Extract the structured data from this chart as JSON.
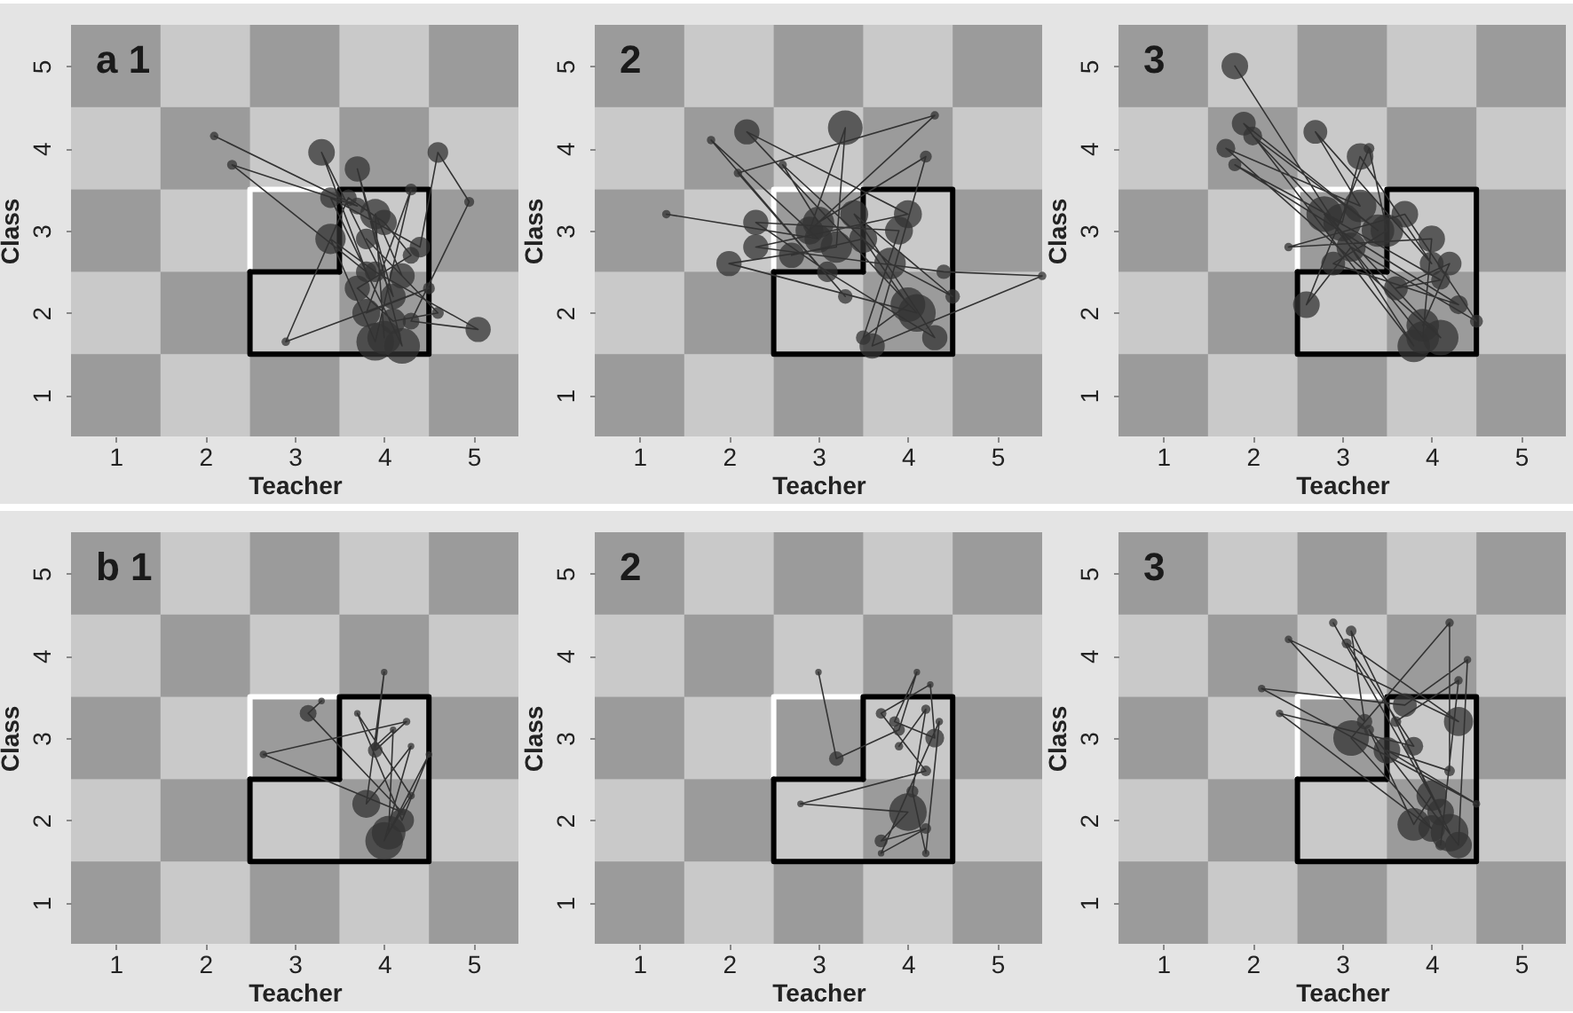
{
  "chart_data": [
    {
      "type": "bubble",
      "title": "a 1",
      "xlabel": "Teacher",
      "ylabel": "Class",
      "xlim": [
        0.5,
        5.5
      ],
      "ylim": [
        0.5,
        5.5
      ],
      "xticks": [
        1,
        2,
        3,
        4,
        5
      ],
      "yticks": [
        1,
        2,
        3,
        4,
        5
      ],
      "series": [
        {
          "type": "line",
          "color": "#ffffff",
          "x": [
            2.5,
            2.5,
            3.5
          ],
          "values": [
            2.5,
            3.5,
            3.5
          ]
        },
        {
          "type": "line",
          "color": "#000000",
          "x": [
            2.5,
            2.5,
            4.5,
            4.5,
            3.5,
            3.5
          ],
          "values": [
            2.5,
            1.5,
            1.5,
            3.5,
            3.5,
            2.5
          ]
        },
        {
          "type": "line",
          "color": "#000000",
          "x": [
            3.5,
            2.5
          ],
          "values": [
            2.5,
            2.5
          ]
        },
        {
          "type": "line",
          "color": "#333333",
          "x": [
            2.1,
            3.7,
            2.3,
            3.8,
            3.3,
            4.1,
            3.7,
            4.2,
            3.4,
            4.4,
            4.6,
            4.95,
            4.3,
            5.05,
            3.9,
            3.4,
            3.9,
            4.3,
            3.8,
            4.5,
            2.9,
            3.6,
            4.0,
            4.3,
            3.7,
            4.1,
            4.6,
            3.8,
            4.2,
            3.9,
            4.0
          ],
          "values": [
            4.15,
            3.3,
            3.8,
            2.5,
            3.95,
            2.2,
            3.75,
            1.6,
            3.4,
            2.8,
            3.95,
            3.35,
            1.9,
            1.8,
            2.5,
            2.9,
            1.65,
            3.5,
            2.0,
            2.3,
            1.65,
            3.4,
            3.1,
            2.7,
            2.3,
            1.9,
            2.0,
            2.9,
            2.45,
            3.2,
            1.7
          ]
        },
        {
          "color": "#333333",
          "x": [
            2.1,
            3.7,
            2.3,
            3.8,
            3.3,
            4.1,
            3.7,
            4.2,
            3.4,
            4.4,
            4.6,
            4.95,
            4.3,
            5.05,
            3.9,
            3.4,
            3.9,
            4.3,
            3.8,
            4.5,
            2.9,
            3.6,
            4.0,
            4.3,
            3.7,
            4.1,
            4.6,
            3.8,
            4.2,
            3.9,
            4.0
          ],
          "values": [
            4.15,
            3.3,
            3.8,
            2.5,
            3.95,
            2.2,
            3.75,
            1.6,
            3.4,
            2.8,
            3.95,
            3.35,
            1.9,
            1.8,
            2.5,
            2.9,
            1.65,
            3.5,
            2.0,
            2.3,
            1.65,
            3.4,
            3.1,
            2.7,
            2.3,
            1.9,
            2.0,
            2.9,
            2.45,
            3.2,
            1.7
          ],
          "sizes": [
            0.05,
            0.2,
            0.07,
            0.3,
            0.5,
            0.45,
            0.45,
            0.9,
            0.3,
            0.3,
            0.3,
            0.07,
            0.2,
            0.45,
            0.3,
            0.65,
            1,
            0.1,
            0.55,
            0.1,
            0.05,
            0.2,
            0.45,
            0.2,
            0.45,
            0.45,
            0.1,
            0.3,
            0.45,
            0.65,
            0.8
          ]
        }
      ]
    },
    {
      "type": "bubble",
      "title": "2",
      "xlabel": "Teacher",
      "ylabel": "Class",
      "xlim": [
        0.5,
        5.5
      ],
      "ylim": [
        0.5,
        5.5
      ],
      "xticks": [
        1,
        2,
        3,
        4,
        5
      ],
      "yticks": [
        1,
        2,
        3,
        4,
        5
      ],
      "series": [
        {
          "type": "line",
          "color": "#ffffff",
          "x": [
            2.5,
            2.5,
            3.5
          ],
          "values": [
            2.5,
            3.5,
            3.5
          ]
        },
        {
          "type": "line",
          "color": "#000000",
          "x": [
            2.5,
            2.5,
            4.5,
            4.5,
            3.5,
            3.5
          ],
          "values": [
            2.5,
            1.5,
            1.5,
            3.5,
            3.5,
            2.5
          ]
        },
        {
          "type": "line",
          "color": "#000000",
          "x": [
            3.5,
            2.5
          ],
          "values": [
            2.5,
            2.5
          ]
        },
        {
          "type": "line",
          "color": "#333333",
          "x": [
            1.3,
            3.0,
            1.8,
            3.3,
            2.1,
            4.3,
            2.9,
            3.3,
            3.2,
            2.0,
            4.1,
            2.2,
            4.0,
            2.3,
            4.4,
            5.5,
            3.6,
            4.2,
            3.0,
            2.6,
            3.8,
            4.5,
            3.4,
            4.3,
            3.1,
            2.3,
            3.9,
            3.5,
            4.0,
            3.5,
            2.7
          ],
          "values": [
            3.2,
            2.9,
            4.1,
            2.2,
            3.7,
            4.4,
            3.0,
            4.25,
            2.8,
            2.6,
            2.0,
            4.2,
            3.2,
            2.8,
            2.5,
            2.45,
            1.6,
            3.9,
            3.1,
            3.8,
            2.6,
            2.2,
            3.2,
            1.7,
            2.5,
            3.1,
            3.0,
            1.7,
            2.1,
            2.9,
            2.7
          ]
        },
        {
          "color": "#333333",
          "x": [
            1.3,
            3.0,
            1.8,
            3.3,
            2.1,
            4.3,
            2.9,
            3.3,
            3.2,
            2.0,
            4.1,
            2.2,
            4.0,
            2.3,
            4.4,
            5.5,
            3.6,
            4.2,
            3.0,
            2.6,
            3.8,
            4.5,
            3.4,
            4.3,
            3.1,
            2.3,
            3.9,
            3.5,
            4.0,
            3.5,
            2.7
          ],
          "values": [
            3.2,
            2.9,
            4.1,
            2.2,
            3.7,
            4.4,
            3.0,
            4.25,
            2.8,
            2.6,
            2.0,
            4.2,
            3.2,
            2.8,
            2.5,
            2.45,
            1.6,
            3.9,
            3.1,
            3.8,
            2.6,
            2.2,
            3.2,
            1.7,
            2.5,
            3.1,
            3.0,
            1.7,
            2.1,
            2.9,
            2.7
          ],
          "sizes": [
            0.05,
            0.55,
            0.05,
            0.15,
            0.05,
            0.05,
            0.55,
            0.85,
            0.7,
            0.45,
            1,
            0.45,
            0.55,
            0.45,
            0.15,
            0.05,
            0.45,
            0.1,
            0.7,
            0.05,
            0.7,
            0.15,
            0.55,
            0.45,
            0.3,
            0.45,
            0.55,
            0.15,
            0.85,
            0.55,
            0.45
          ]
        }
      ]
    },
    {
      "type": "bubble",
      "title": "3",
      "xlabel": "Teacher",
      "ylabel": "Class",
      "xlim": [
        0.5,
        5.5
      ],
      "ylim": [
        0.5,
        5.5
      ],
      "xticks": [
        1,
        2,
        3,
        4,
        5
      ],
      "yticks": [
        1,
        2,
        3,
        4,
        5
      ],
      "series": [
        {
          "type": "line",
          "color": "#ffffff",
          "x": [
            2.5,
            2.5,
            3.5
          ],
          "values": [
            2.5,
            3.5,
            3.5
          ]
        },
        {
          "type": "line",
          "color": "#000000",
          "x": [
            2.5,
            2.5,
            4.5,
            4.5,
            3.5,
            3.5
          ],
          "values": [
            2.5,
            1.5,
            1.5,
            3.5,
            3.5,
            2.5
          ]
        },
        {
          "type": "line",
          "color": "#000000",
          "x": [
            3.5,
            2.5
          ],
          "values": [
            2.5,
            2.5
          ]
        },
        {
          "type": "line",
          "color": "#333333",
          "x": [
            1.8,
            3.8,
            1.9,
            3.4,
            2.0,
            4.1,
            1.7,
            3.2,
            2.7,
            4.0,
            3.2,
            3.0,
            1.8,
            4.3,
            2.9,
            3.5,
            3.3,
            2.6,
            3.1,
            4.5,
            3.7,
            2.4,
            4.0,
            3.9,
            2.8,
            4.1,
            3.6,
            4.2,
            3.9
          ],
          "values": [
            5.0,
            1.6,
            4.3,
            3.0,
            4.15,
            1.7,
            4.0,
            3.3,
            4.2,
            2.6,
            3.9,
            3.1,
            3.8,
            2.1,
            2.6,
            3.0,
            4.0,
            2.1,
            2.8,
            1.9,
            3.2,
            2.8,
            2.9,
            1.7,
            3.2,
            2.4,
            2.3,
            2.6,
            1.85
          ]
        },
        {
          "color": "#333333",
          "x": [
            1.8,
            3.8,
            1.9,
            3.4,
            2.0,
            4.1,
            1.7,
            3.2,
            2.7,
            4.0,
            3.2,
            3.0,
            1.8,
            4.3,
            2.9,
            3.5,
            3.3,
            2.6,
            3.1,
            4.5,
            3.7,
            2.4,
            4.0,
            3.9,
            2.8,
            4.1,
            3.6,
            4.2,
            3.9
          ],
          "values": [
            5.0,
            1.6,
            4.3,
            3.0,
            4.15,
            1.7,
            4.0,
            3.3,
            4.2,
            2.6,
            3.9,
            3.1,
            3.8,
            2.1,
            2.6,
            3.0,
            4.0,
            2.1,
            2.8,
            1.9,
            3.2,
            2.8,
            2.9,
            1.7,
            3.2,
            2.4,
            2.3,
            2.6,
            1.85
          ],
          "sizes": [
            0.5,
            0.75,
            0.4,
            0.75,
            0.25,
            0.9,
            0.25,
            0.75,
            0.4,
            0.4,
            0.5,
            1,
            0.12,
            0.25,
            0.4,
            0.75,
            0.08,
            0.5,
            0.6,
            0.12,
            0.5,
            0.05,
            0.5,
            0.75,
            0.9,
            0.25,
            0.4,
            0.4,
            0.75
          ]
        }
      ]
    },
    {
      "type": "bubble",
      "title": "b 1",
      "xlabel": "Teacher",
      "ylabel": "Class",
      "xlim": [
        0.5,
        5.5
      ],
      "ylim": [
        0.5,
        5.5
      ],
      "xticks": [
        1,
        2,
        3,
        4,
        5
      ],
      "yticks": [
        1,
        2,
        3,
        4,
        5
      ],
      "series": [
        {
          "type": "line",
          "color": "#ffffff",
          "x": [
            2.5,
            2.5,
            3.5
          ],
          "values": [
            2.5,
            3.5,
            3.5
          ]
        },
        {
          "type": "line",
          "color": "#000000",
          "x": [
            2.5,
            2.5,
            4.5,
            4.5,
            3.5,
            3.5
          ],
          "values": [
            2.5,
            1.5,
            1.5,
            3.5,
            3.5,
            2.5
          ]
        },
        {
          "type": "line",
          "color": "#000000",
          "x": [
            3.5,
            2.5
          ],
          "values": [
            2.5,
            2.5
          ]
        },
        {
          "type": "line",
          "color": "#333333",
          "x": [
            3.3,
            3.15,
            4.2,
            2.65,
            4.25,
            3.9,
            4.0,
            3.8,
            4.3,
            4.0,
            4.5,
            4.2,
            3.7,
            4.3,
            4.05,
            4.1,
            3.9
          ],
          "values": [
            3.45,
            3.3,
            2.1,
            2.8,
            3.2,
            2.85,
            3.8,
            2.2,
            2.9,
            1.75,
            2.8,
            2.0,
            3.3,
            2.3,
            1.85,
            3.1,
            2.9
          ]
        },
        {
          "color": "#333333",
          "x": [
            3.3,
            3.15,
            4.2,
            2.65,
            4.25,
            3.9,
            4.0,
            3.8,
            4.3,
            4.0,
            4.5,
            4.2,
            3.7,
            4.3,
            4.05,
            4.1,
            3.9
          ],
          "values": [
            3.45,
            3.3,
            2.1,
            2.8,
            3.2,
            2.85,
            3.8,
            2.2,
            2.9,
            1.75,
            2.8,
            2.0,
            3.3,
            2.3,
            1.85,
            3.1,
            2.9
          ],
          "sizes": [
            0.03,
            0.2,
            0.03,
            0.04,
            0.04,
            0.15,
            0.03,
            0.55,
            0.03,
            1,
            0.03,
            0.4,
            0.03,
            0.04,
            0.8,
            0.03,
            0.05
          ]
        }
      ]
    },
    {
      "type": "bubble",
      "title": "2",
      "xlabel": "Teacher",
      "ylabel": "Class",
      "xlim": [
        0.5,
        5.5
      ],
      "ylim": [
        0.5,
        5.5
      ],
      "xticks": [
        1,
        2,
        3,
        4,
        5
      ],
      "yticks": [
        1,
        2,
        3,
        4,
        5
      ],
      "series": [
        {
          "type": "line",
          "color": "#ffffff",
          "x": [
            2.5,
            2.5,
            3.5
          ],
          "values": [
            2.5,
            3.5,
            3.5
          ]
        },
        {
          "type": "line",
          "color": "#000000",
          "x": [
            2.5,
            2.5,
            4.5,
            4.5,
            3.5,
            3.5
          ],
          "values": [
            2.5,
            1.5,
            1.5,
            3.5,
            3.5,
            2.5
          ]
        },
        {
          "type": "line",
          "color": "#000000",
          "x": [
            3.5,
            2.5
          ],
          "values": [
            2.5,
            2.5
          ]
        },
        {
          "type": "line",
          "color": "#333333",
          "x": [
            3.0,
            3.2,
            3.9,
            4.1,
            3.85,
            4.3,
            4.25,
            3.7,
            4.2,
            2.8,
            4.0,
            3.7,
            4.2,
            3.7,
            4.35,
            4.2,
            4.05,
            4.2,
            3.9
          ],
          "values": [
            3.8,
            2.75,
            3.1,
            3.8,
            3.2,
            3.0,
            3.65,
            3.3,
            2.6,
            2.2,
            2.1,
            1.75,
            1.9,
            1.6,
            3.2,
            1.6,
            2.35,
            3.35,
            2.9
          ]
        },
        {
          "color": "#333333",
          "x": [
            3.0,
            3.2,
            3.9,
            4.1,
            3.85,
            4.3,
            4.25,
            3.7,
            4.2,
            2.8,
            4.0,
            3.7,
            4.2,
            3.7,
            4.35,
            4.2,
            4.05,
            4.2,
            3.9
          ],
          "values": [
            3.8,
            2.75,
            3.1,
            3.8,
            3.2,
            3.0,
            3.65,
            3.3,
            2.6,
            2.2,
            2.1,
            1.75,
            1.9,
            1.6,
            3.2,
            1.6,
            2.35,
            3.35,
            2.9
          ],
          "sizes": [
            0.03,
            0.15,
            0.1,
            0.03,
            0.08,
            0.25,
            0.03,
            0.08,
            0.08,
            0.03,
            1,
            0.12,
            0.08,
            0.03,
            0.04,
            0.04,
            0.1,
            0.06,
            0.05
          ]
        }
      ]
    },
    {
      "type": "bubble",
      "title": "3",
      "xlabel": "Teacher",
      "ylabel": "Class",
      "xlim": [
        0.5,
        5.5
      ],
      "ylim": [
        0.5,
        5.5
      ],
      "xticks": [
        1,
        2,
        3,
        4,
        5
      ],
      "yticks": [
        1,
        2,
        3,
        4,
        5
      ],
      "series": [
        {
          "type": "line",
          "color": "#ffffff",
          "x": [
            2.5,
            2.5,
            3.5
          ],
          "values": [
            2.5,
            3.5,
            3.5
          ]
        },
        {
          "type": "line",
          "color": "#000000",
          "x": [
            2.5,
            2.5,
            4.5,
            4.5,
            3.5,
            3.5
          ],
          "values": [
            2.5,
            1.5,
            1.5,
            3.5,
            3.5,
            2.5
          ]
        },
        {
          "type": "line",
          "color": "#000000",
          "x": [
            3.5,
            2.5
          ],
          "values": [
            2.5,
            2.5
          ]
        },
        {
          "type": "line",
          "color": "#333333",
          "x": [
            2.9,
            4.1,
            3.1,
            3.25,
            2.4,
            4.3,
            3.05,
            3.8,
            2.3,
            4.0,
            3.1,
            4.2,
            4.2,
            3.5,
            4.5,
            2.1,
            3.7,
            4.4,
            4.3,
            3.3,
            3.8,
            4.0,
            4.2,
            3.6,
            4.3,
            4.1
          ],
          "values": [
            4.4,
            2.1,
            4.3,
            3.2,
            4.2,
            3.2,
            4.15,
            2.9,
            3.3,
            1.9,
            3.0,
            4.4,
            2.6,
            2.85,
            2.2,
            3.6,
            3.4,
            3.95,
            1.7,
            3.1,
            1.95,
            2.3,
            1.85,
            3.2,
            3.7,
            1.7
          ]
        },
        {
          "color": "#333333",
          "x": [
            2.9,
            4.1,
            3.1,
            3.25,
            2.4,
            4.3,
            3.05,
            3.8,
            2.3,
            4.0,
            3.1,
            4.2,
            4.2,
            3.5,
            4.5,
            2.1,
            3.7,
            4.4,
            4.3,
            3.3,
            3.8,
            4.0,
            4.2,
            3.6,
            4.3,
            4.1
          ],
          "values": [
            4.4,
            2.1,
            4.3,
            3.2,
            4.2,
            3.2,
            4.15,
            2.9,
            3.3,
            1.9,
            3.0,
            4.4,
            2.6,
            2.85,
            2.2,
            3.6,
            3.4,
            3.95,
            1.7,
            3.1,
            1.95,
            2.3,
            1.85,
            3.2,
            3.7,
            1.7
          ],
          "sizes": [
            0.05,
            0.5,
            0.08,
            0.17,
            0.04,
            0.6,
            0.07,
            0.25,
            0.04,
            0.5,
            0.9,
            0.05,
            0.08,
            0.5,
            0.04,
            0.04,
            0.4,
            0.04,
            0.5,
            0.07,
            0.75,
            0.65,
            1,
            0.08,
            0.05,
            0.08
          ]
        }
      ]
    }
  ]
}
